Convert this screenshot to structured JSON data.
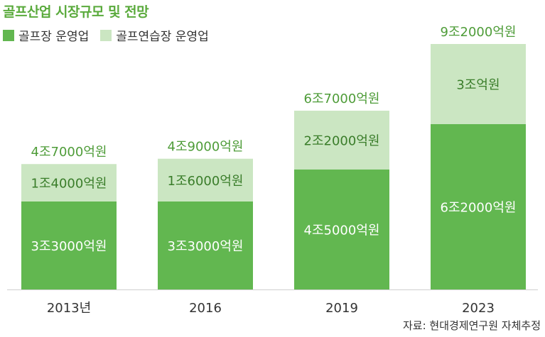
{
  "title": "골프산업 시장규모 및 전망",
  "source": "자료: 현대경제연구원 자체추정",
  "colors": {
    "dark": "#62b750",
    "light": "#cbe6c2",
    "title": "#5aaa3c",
    "axis": "#cfcfcf"
  },
  "chart_data": {
    "type": "bar",
    "stacked": true,
    "title": "골프산업 시장규모 및 전망",
    "unit": "억원",
    "categories": [
      "2013년",
      "2016",
      "2019",
      "2023"
    ],
    "series": [
      {
        "name": "골프장 운영업",
        "color": "#62b750",
        "values": [
          33000,
          33000,
          45000,
          62000
        ],
        "labels": [
          "3조3000억원",
          "3조3000억원",
          "4조5000억원",
          "6조2000억원"
        ]
      },
      {
        "name": "골프연습장 운영업",
        "color": "#cbe6c2",
        "values": [
          14000,
          16000,
          22000,
          30000
        ],
        "labels": [
          "1조4000억원",
          "1조6000억원",
          "2조2000억원",
          "3조억원"
        ]
      }
    ],
    "totals": [
      47000,
      49000,
      67000,
      92000
    ],
    "total_labels": [
      "4조7000억원",
      "4조9000억원",
      "6조7000억원",
      "9조2000억원"
    ],
    "legend_position": "top-left",
    "grid": false
  }
}
